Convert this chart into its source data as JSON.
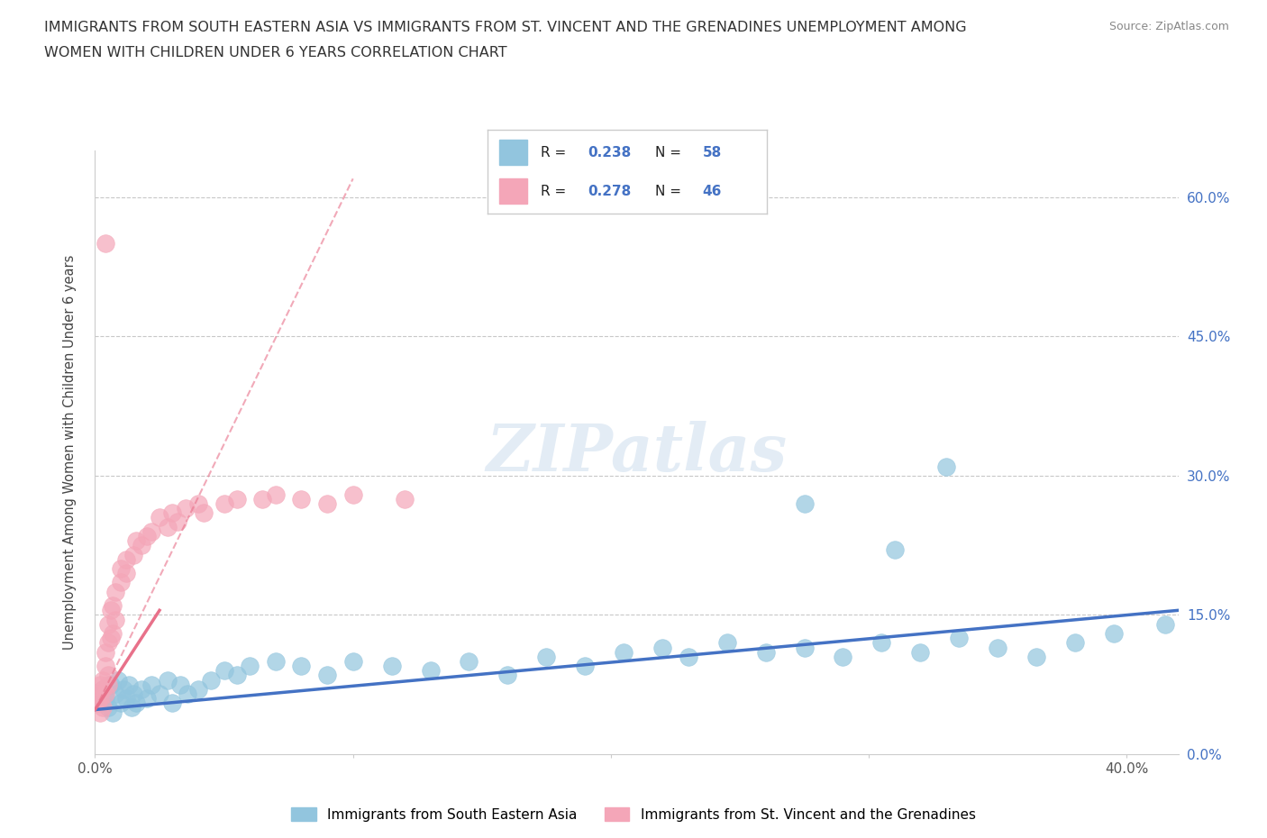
{
  "title_line1": "IMMIGRANTS FROM SOUTH EASTERN ASIA VS IMMIGRANTS FROM ST. VINCENT AND THE GRENADINES UNEMPLOYMENT AMONG",
  "title_line2": "WOMEN WITH CHILDREN UNDER 6 YEARS CORRELATION CHART",
  "source_text": "Source: ZipAtlas.com",
  "ylabel": "Unemployment Among Women with Children Under 6 years",
  "xlim": [
    0.0,
    0.42
  ],
  "ylim": [
    0.0,
    0.65
  ],
  "color_blue": "#92C5DE",
  "color_pink": "#F4A6B8",
  "color_blue_text": "#4472C4",
  "color_trend_blue": "#4472C4",
  "color_trend_pink": "#E8718A",
  "grid_color": "#C8C8C8",
  "background_color": "#FFFFFF",
  "legend_r1": "R = 0.238",
  "legend_n1": "N = 58",
  "legend_r2": "R = 0.278",
  "legend_n2": "N = 46",
  "legend1_label": "Immigrants from South Eastern Asia",
  "legend2_label": "Immigrants from St. Vincent and the Grenadines",
  "watermark_text": "ZIPatlas",
  "blue_trend_x0": 0.0,
  "blue_trend_x1": 0.42,
  "blue_trend_y0": 0.048,
  "blue_trend_y1": 0.155,
  "pink_trend_solid_x0": 0.0,
  "pink_trend_solid_x1": 0.025,
  "pink_trend_solid_y0": 0.048,
  "pink_trend_solid_y1": 0.155,
  "pink_trend_dash_x0": 0.0,
  "pink_trend_dash_x1": 0.1,
  "pink_trend_dash_y0": 0.048,
  "pink_trend_dash_y1": 0.62
}
